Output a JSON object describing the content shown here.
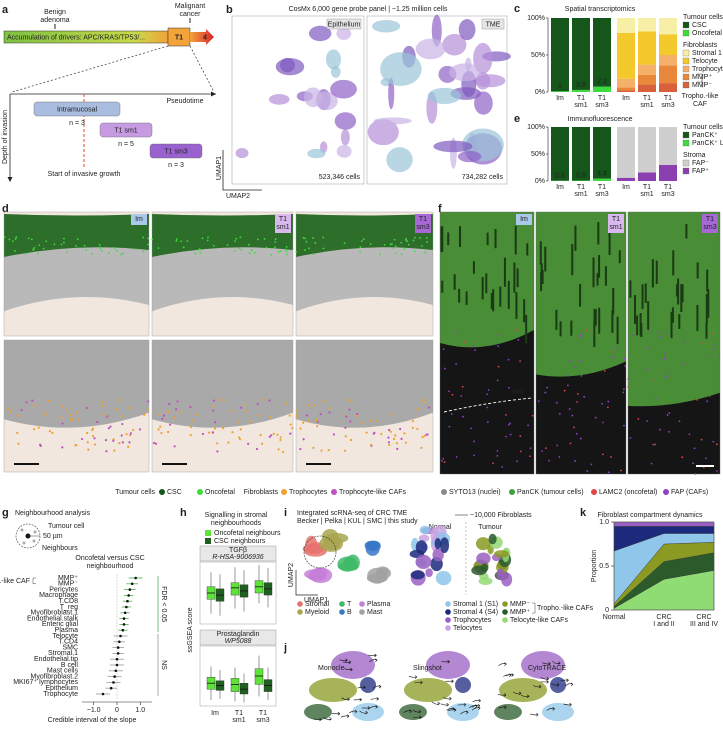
{
  "a": {
    "label": "a",
    "benign": [
      "Benign",
      "adenoma"
    ],
    "malignant": [
      "Malignant",
      "cancer"
    ],
    "drivers": "Accumulation of drivers: APC/KRAS/TP53/...",
    "t1": "T1",
    "t4": "4",
    "pseudotime": "Pseudotime",
    "depth": "Depth of invasion",
    "start": "Start of invasive growth",
    "groups": [
      {
        "name": "Intramucosal",
        "n": "n = 3"
      },
      {
        "name": "T1 sm1",
        "n": "n = 5"
      },
      {
        "name": "T1 sm3",
        "n": "n = 3"
      }
    ]
  },
  "b": {
    "label": "b",
    "title": "CosMx 6,000 gene probe panel | ~1.25 million cells",
    "panels": [
      {
        "name": "Epithelium",
        "cells": "523,346 cells"
      },
      {
        "name": "TME",
        "cells": "734,282 cells"
      }
    ],
    "axis_v": "UMAP1",
    "axis_h": "UMAP2"
  },
  "c": {
    "label": "c",
    "title": "Spatial transcriptomics",
    "ylim": [
      0,
      100
    ],
    "yticks": [
      {
        "value": 100,
        "label": "100%"
      },
      {
        "value": 50,
        "label": "50%"
      },
      {
        "value": 0,
        "label": "0%"
      }
    ],
    "categories": [
      [
        "Im"
      ],
      [
        "T1",
        "sm1"
      ],
      [
        "T1",
        "sm3"
      ]
    ],
    "tumour": {
      "header": "Tumour cells",
      "series": [
        {
          "name": "CSC",
          "color": "#15561a",
          "values": [
            99,
            97.2,
            92.8
          ]
        },
        {
          "name": "Oncofetal",
          "color": "#3ddc3d",
          "values": [
            1,
            2.8,
            7.2
          ]
        }
      ]
    },
    "fibro": {
      "header": "Fibroblasts",
      "series": [
        {
          "name": "Stromal 1",
          "color": "#f7efa6",
          "values": [
            20,
            18,
            22
          ]
        },
        {
          "name": "Telocyte",
          "color": "#f3c92c",
          "values": [
            62,
            45,
            28
          ]
        },
        {
          "name": "Trophocyte",
          "color": "#f5b06a",
          "values": [
            12,
            14,
            14
          ]
        },
        {
          "name": "MMP⁺",
          "color": "#e9873a",
          "values": [
            4,
            13,
            24
          ]
        },
        {
          "name": "MMP⁻",
          "color": "#d8603a",
          "values": [
            2,
            10,
            12
          ]
        }
      ]
    },
    "caf": [
      "Tropho.-like",
      "CAF"
    ]
  },
  "e": {
    "label": "e",
    "title": "Immunofluorescence",
    "ylim": [
      0,
      100
    ],
    "yticks": [
      {
        "value": 100,
        "label": "100%"
      },
      {
        "value": 50,
        "label": "50%"
      },
      {
        "value": 0,
        "label": "0%"
      }
    ],
    "categories": [
      [
        "Im"
      ],
      [
        "T1",
        "sm1"
      ],
      [
        "T1",
        "sm3"
      ]
    ],
    "tumour": {
      "header": "Tumour cells",
      "series": [
        {
          "name": "PanCK⁺",
          "color": "#15561a",
          "values": [
            99.4,
            99.1,
            95.6
          ]
        },
        {
          "name": "PanCK⁺ LAMC2⁺",
          "color": "#3ddc3d",
          "values": [
            0.6,
            0.9,
            4.4
          ]
        }
      ]
    },
    "stroma": {
      "header": "Stroma",
      "series": [
        {
          "name": "FAP⁻",
          "color": "#cfcfcf",
          "values": [
            94,
            84,
            70
          ]
        },
        {
          "name": "FAP⁺",
          "color": "#8c3fb0",
          "values": [
            6,
            16,
            30
          ]
        }
      ]
    }
  },
  "d": {
    "label": "d",
    "tags": [
      [
        "Im"
      ],
      [
        "T1",
        "sm1"
      ],
      [
        "T1",
        "sm3"
      ]
    ],
    "tumour": "Tumour cells",
    "tumour_items": [
      {
        "name": "CSC",
        "color": "#15561a"
      },
      {
        "name": "Oncofetal",
        "color": "#3ddc3d"
      }
    ],
    "fibro": "Fibroblasts",
    "fibro_items": [
      {
        "name": "Trophocytes",
        "color": "#f0a030"
      },
      {
        "name": "Trophocyte-like CAFs",
        "color": "#c050c0"
      }
    ]
  },
  "f": {
    "label": "f",
    "tags": [
      [
        "Im"
      ],
      [
        "T1",
        "sm1"
      ],
      [
        "T1",
        "sm3"
      ]
    ],
    "mm": "MM",
    "legend": [
      {
        "name": "SYTO13 (nuclei)",
        "color": "#8a8a8a"
      },
      {
        "name": "PanCK (tumour cells)",
        "color": "#3aa040"
      },
      {
        "name": "LAMC2 (oncofetal)",
        "color": "#e04545"
      },
      {
        "name": "FAP (CAFs)",
        "color": "#9040c0"
      }
    ]
  },
  "g": {
    "label": "g",
    "title": "Neighbourhood analysis",
    "tumour_cell": "Tumour cell",
    "radius": "50 µm",
    "neighbours": "Neighbours",
    "subtitle": [
      "Oncofetal versus CSC",
      "neighbourhood"
    ],
    "caf": "Tropho.-like CAF",
    "rows": [
      "MMP⁺",
      "MMP⁻",
      "Pericytes",
      "Macrophage",
      "T.CD8",
      "T_reg",
      "Myofibroblast.1",
      "Endothelial.stalk",
      "Enteric glial",
      "Plasma",
      "Telocyte",
      "T.CD4",
      "SMC",
      "Stromal.1",
      "Endothelial.tip",
      "B cell",
      "Mast cells",
      "Myofibroblast.2",
      "MKI67⁺ lymphocytes",
      "Epithelium",
      "Trophocyte"
    ],
    "estimates": [
      0.8,
      0.65,
      0.55,
      0.5,
      0.45,
      0.4,
      0.35,
      0.3,
      0.3,
      0.25,
      0.15,
      0.1,
      0.05,
      0.05,
      0,
      0,
      -0.05,
      -0.1,
      -0.15,
      -0.25,
      -0.6
    ],
    "errors": [
      0.3,
      0.25,
      0.25,
      0.2,
      0.2,
      0.2,
      0.2,
      0.2,
      0.2,
      0.2,
      0.3,
      0.25,
      0.25,
      0.25,
      0.3,
      0.3,
      0.3,
      0.3,
      0.3,
      0.25,
      0.3
    ],
    "fdr": "FDR < 0.05",
    "ns": "NS",
    "xlim": [
      -1.5,
      1.5
    ],
    "xticks": [
      {
        "value": -1,
        "label": "−1.0"
      },
      0,
      {
        "value": 1,
        "label": "1.0"
      }
    ],
    "xlabel": "Credible interval of the slope"
  },
  "h": {
    "label": "h",
    "title": [
      "Signalling in stromal",
      "neighbourhoods"
    ],
    "legend": [
      {
        "name": "Oncofetal neighbours",
        "color": "#5ee33a"
      },
      {
        "name": "CSC neighbours",
        "color": "#1f5f1f"
      }
    ],
    "ylabel": "ssGSEA score",
    "categories": [
      [
        "Im"
      ],
      [
        "T1",
        "sm1"
      ],
      [
        "T1",
        "sm3"
      ]
    ],
    "panels": [
      {
        "title": "TGFβ",
        "subtitle": "R-HSA-9006936",
        "ylim": [
          -0.3,
          0.3
        ],
        "oncofetal": [
          [
            -0.2,
            -0.06,
            0.0,
            0.06,
            0.2
          ],
          [
            -0.15,
            -0.02,
            0.05,
            0.1,
            0.25
          ],
          [
            -0.1,
            0.0,
            0.06,
            0.12,
            0.27
          ]
        ],
        "csc": [
          [
            -0.22,
            -0.08,
            -0.02,
            0.04,
            0.18
          ],
          [
            -0.18,
            -0.04,
            0.02,
            0.08,
            0.22
          ],
          [
            -0.14,
            -0.02,
            0.04,
            0.1,
            0.24
          ]
        ]
      },
      {
        "title": "Prostaglandin",
        "subtitle": "WP5088",
        "ylim": [
          0,
          0.5
        ],
        "oncofetal": [
          [
            0.05,
            0.14,
            0.19,
            0.24,
            0.33
          ],
          [
            0.04,
            0.12,
            0.18,
            0.23,
            0.32
          ],
          [
            0.08,
            0.18,
            0.25,
            0.31,
            0.42
          ]
        ],
        "csc": [
          [
            0.06,
            0.13,
            0.17,
            0.21,
            0.3
          ],
          [
            0.03,
            0.1,
            0.14,
            0.19,
            0.27
          ],
          [
            0.05,
            0.12,
            0.17,
            0.22,
            0.32
          ]
        ]
      }
    ]
  },
  "i": {
    "label": "i",
    "title": "Integrated scRNA-seq of CRC TME",
    "sources": "Becker | Pelka | KUL | SMC | this study",
    "fibro": "~10,000 Fibroblasts",
    "normal": "Normal",
    "tumour": "Tumour",
    "axis_v": "UMAP2",
    "axis_h": "UMAP1",
    "legend": [
      {
        "name": "Stromal",
        "color": "#e6736e"
      },
      {
        "name": "Myeloid",
        "color": "#a8a650"
      },
      {
        "name": "T",
        "color": "#3fb86a"
      },
      {
        "name": "B",
        "color": "#3a78c8"
      },
      {
        "name": "Plasma",
        "color": "#c67fd8"
      },
      {
        "name": "Mast",
        "color": "#a2a2a2"
      },
      {
        "name": "Stromal 1 (S1)",
        "color": "#8fc6ea"
      },
      {
        "name": "Stromal 4 (S4)",
        "color": "#1c2a7c"
      },
      {
        "name": "Trophocytes",
        "color": "#9a5fc2"
      },
      {
        "name": "Telocytes",
        "color": "#c9a3e2"
      },
      {
        "name": "MMP⁻",
        "color": "#8a9a22"
      },
      {
        "name": "MMP⁺",
        "color": "#2b5b2b"
      },
      {
        "name": "Telocyte-like CAFs",
        "color": "#94d874"
      }
    ],
    "caf": "Tropho.-like CAFs"
  },
  "j": {
    "label": "j",
    "methods": [
      "Monocle",
      "Slingshot",
      "CytoTRACE"
    ]
  },
  "k": {
    "label": "k",
    "title": "Fibroblast compartment dynamics",
    "ylabel": "Proportion",
    "categories": [
      [
        "Normal"
      ],
      [
        "CRC",
        "I and II"
      ],
      [
        "CRC",
        "III and IV"
      ]
    ],
    "ylim": [
      0,
      1
    ],
    "yticks": [
      0,
      0.5,
      {
        "value": 1,
        "label": "1.0"
      }
    ],
    "layers": [
      {
        "color": "#8fdc74",
        "values": [
          0.02,
          0.35,
          0.45
        ]
      },
      {
        "color": "#2b5b2b",
        "values": [
          0.02,
          0.2,
          0.2
        ]
      },
      {
        "color": "#8a9a22",
        "values": [
          0.03,
          0.2,
          0.12
        ]
      },
      {
        "color": "#8fc6ea",
        "values": [
          0.6,
          0.12,
          0.1
        ]
      },
      {
        "color": "#1c2a7c",
        "values": [
          0.28,
          0.08,
          0.08
        ]
      },
      {
        "color": "#9a5fc2",
        "values": [
          0.05,
          0.05,
          0.05
        ]
      }
    ]
  }
}
